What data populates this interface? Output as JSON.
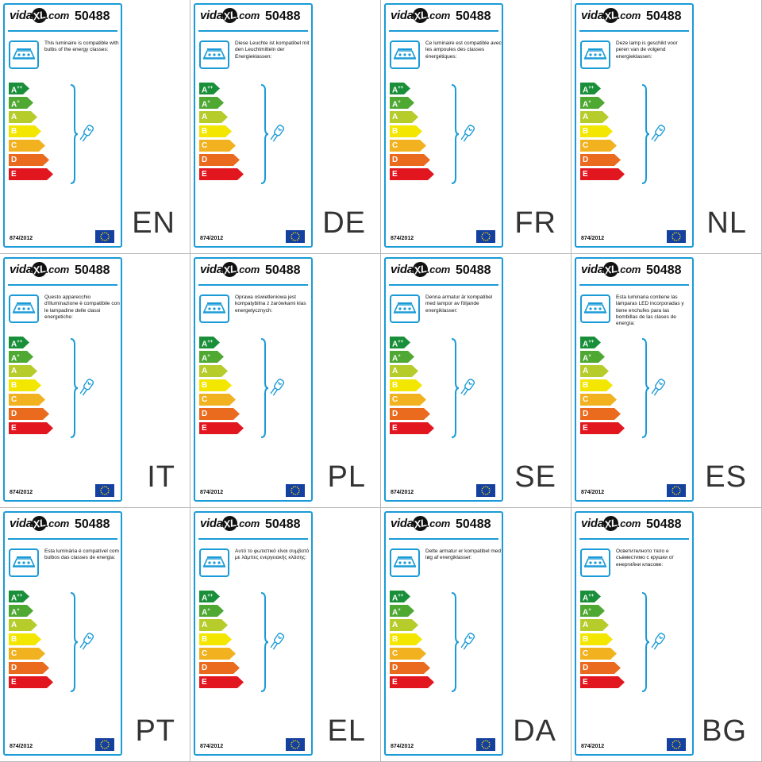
{
  "brand": {
    "prefix": "vida",
    "mark": "XL",
    "suffix": ".com"
  },
  "product_code": "50488",
  "regulation": "874/2012",
  "icons": {
    "lamp": "lamp-icon",
    "bulb": "bulb-icon",
    "flag": "eu-flag-icon"
  },
  "energy_classes": [
    {
      "base": "A",
      "sup": "++",
      "color": "#1a8f3a"
    },
    {
      "base": "A",
      "sup": "+",
      "color": "#4ea832"
    },
    {
      "base": "A",
      "sup": "",
      "color": "#b6cc2b"
    },
    {
      "base": "B",
      "sup": "",
      "color": "#f3e600"
    },
    {
      "base": "C",
      "sup": "",
      "color": "#f2b11e"
    },
    {
      "base": "D",
      "sup": "",
      "color": "#ea6a1e"
    },
    {
      "base": "E",
      "sup": "",
      "color": "#e2161f"
    }
  ],
  "accent_color": "#1a9bd7",
  "labels": [
    {
      "lang": "EN",
      "text": "This luminaire is compatible with bulbs of the energy classes:"
    },
    {
      "lang": "DE",
      "text": "Diese Leuchte ist kompatibel mit den Leuchtmitteln der Energieklassen:"
    },
    {
      "lang": "FR",
      "text": "Ce luminaire est compatible avec les ampoules des classes énergétiques:"
    },
    {
      "lang": "NL",
      "text": "Deze lamp is geschikt voor peren van de volgend energieklassen:"
    },
    {
      "lang": "IT",
      "text": "Questo apparecchio d'illuminazione è compatibile con le lampadine delle classi energetiche:"
    },
    {
      "lang": "PL",
      "text": "Oprawa oświetleniowa jest kompatybilna z żarówkami klas energetycznych:"
    },
    {
      "lang": "SE",
      "text": "Denna armatur är kompatibel med lampor av följande energiklasser:"
    },
    {
      "lang": "ES",
      "text": "Esta luminaria contiene las lámparas LED incorporadas y tiene enchufes para las bombillas de las clases de energía:"
    },
    {
      "lang": "PT",
      "text": "Esta luminária é compatível com bulbos das classes de energia:"
    },
    {
      "lang": "EL",
      "text": "Αυτό το φωτιστικό είναι συμβατό με λάμπες ενεργειακής κλάσης:"
    },
    {
      "lang": "DA",
      "text": "Dette armatur er kompatibel med løg af energiklasser:"
    },
    {
      "lang": "BG",
      "text": "Осветителното тяло е съвместимо с крушки от енергийни класове:"
    }
  ]
}
